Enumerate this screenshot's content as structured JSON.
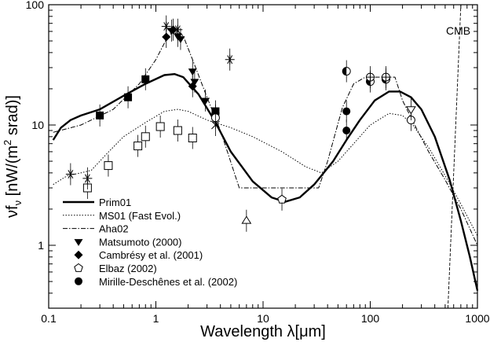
{
  "chart_data": {
    "type": "line",
    "xscale": "log",
    "yscale": "log",
    "xlim": [
      0.1,
      1000
    ],
    "ylim": [
      0.3,
      100
    ],
    "xlabel": "Wavelength λ[μm]",
    "ylabel_main": "νf",
    "ylabel_sub": "ν",
    "ylabel_units_pre": " [nW/(m",
    "ylabel_units_sup": "2",
    "ylabel_units_post": " srad)]",
    "x_ticks": [
      {
        "v": 0.1,
        "label": "0.1"
      },
      {
        "v": 1,
        "label": "1"
      },
      {
        "v": 10,
        "label": "10"
      },
      {
        "v": 100,
        "label": "100"
      },
      {
        "v": 1000,
        "label": "1000"
      }
    ],
    "y_ticks": [
      {
        "v": 1,
        "label": "1"
      },
      {
        "v": 10,
        "label": "10"
      },
      {
        "v": 100,
        "label": "100"
      }
    ],
    "annotation": "CMB",
    "legend_position": "bottom-left",
    "series": [
      {
        "name": "Prim01",
        "style": "solid-thick",
        "points": [
          [
            0.11,
            7.5
          ],
          [
            0.13,
            9.5
          ],
          [
            0.16,
            11
          ],
          [
            0.2,
            12
          ],
          [
            0.3,
            13.5
          ],
          [
            0.5,
            17.5
          ],
          [
            0.8,
            22
          ],
          [
            1.2,
            26
          ],
          [
            1.5,
            26.5
          ],
          [
            1.8,
            25
          ],
          [
            2.5,
            18
          ],
          [
            3.5,
            11
          ],
          [
            5,
            6
          ],
          [
            8,
            3.4
          ],
          [
            12,
            2.5
          ],
          [
            16,
            2.3
          ],
          [
            22,
            2.5
          ],
          [
            30,
            3.2
          ],
          [
            45,
            5
          ],
          [
            60,
            7.5
          ],
          [
            80,
            11
          ],
          [
            110,
            16
          ],
          [
            150,
            19
          ],
          [
            190,
            19
          ],
          [
            240,
            17
          ],
          [
            300,
            13.5
          ],
          [
            400,
            8
          ],
          [
            550,
            3.5
          ],
          [
            700,
            1.6
          ],
          [
            850,
            0.8
          ],
          [
            1000,
            0.42
          ]
        ]
      },
      {
        "name": "MS01 (Fast Evol.)",
        "style": "dotted",
        "points": [
          [
            0.11,
            3.2
          ],
          [
            0.15,
            3.8
          ],
          [
            0.2,
            4
          ],
          [
            0.25,
            4.2
          ],
          [
            0.35,
            5.8
          ],
          [
            0.5,
            8
          ],
          [
            0.8,
            10.5
          ],
          [
            1.2,
            13
          ],
          [
            1.6,
            13.5
          ],
          [
            2,
            13
          ],
          [
            3,
            11
          ],
          [
            5,
            9.5
          ],
          [
            8,
            8
          ],
          [
            15,
            6
          ],
          [
            25,
            4.5
          ],
          [
            35,
            4
          ],
          [
            50,
            5
          ],
          [
            70,
            7
          ],
          [
            100,
            10
          ],
          [
            150,
            12.5
          ],
          [
            200,
            12
          ],
          [
            250,
            10
          ],
          [
            350,
            6.5
          ],
          [
            500,
            3.8
          ],
          [
            700,
            2.2
          ],
          [
            1000,
            1.2
          ]
        ]
      },
      {
        "name": "Aha02",
        "style": "dashdot",
        "points": [
          [
            0.11,
            8.7
          ],
          [
            0.2,
            10
          ],
          [
            0.4,
            13.5
          ],
          [
            0.7,
            22
          ],
          [
            1,
            35
          ],
          [
            1.3,
            55
          ],
          [
            1.55,
            62
          ],
          [
            1.8,
            55
          ],
          [
            2.2,
            35
          ],
          [
            3,
            17
          ],
          [
            4,
            9
          ],
          [
            6,
            3
          ],
          [
            10,
            3
          ],
          [
            20,
            3
          ],
          [
            33,
            3
          ],
          [
            40,
            5
          ],
          [
            55,
            14
          ],
          [
            70,
            22
          ],
          [
            90,
            25
          ],
          [
            120,
            25
          ],
          [
            170,
            25
          ],
          [
            200,
            16
          ],
          [
            260,
            10
          ],
          [
            350,
            6
          ],
          [
            500,
            3.5
          ],
          [
            700,
            2
          ],
          [
            1000,
            1
          ]
        ]
      },
      {
        "name": "CMB",
        "style": "dashed-thin",
        "points": [
          [
            530,
            0.3
          ],
          [
            700,
            100
          ]
        ]
      }
    ],
    "data_sets": [
      {
        "name": "Matsumoto (2000)",
        "marker": "tri-down-filled",
        "points": [
          [
            1.4,
            61
          ],
          [
            1.6,
            55
          ],
          [
            1.7,
            52
          ],
          [
            2.2,
            28
          ],
          [
            2.3,
            23
          ],
          [
            2.9,
            16
          ],
          [
            3.6,
            12
          ]
        ]
      },
      {
        "name": "Cambrésy et al. (2001)",
        "marker": "diamond-filled",
        "points": [
          [
            1.25,
            54
          ],
          [
            1.45,
            62
          ],
          [
            2.2,
            21
          ]
        ]
      },
      {
        "name": "Elbaz (2002)",
        "marker": "pentagon-open",
        "points": [
          [
            15,
            2.4
          ]
        ]
      },
      {
        "name": "Mirille-Deschênes et al. (2002)",
        "marker": "circle-filled",
        "points": [
          [
            60,
            13
          ],
          [
            60,
            9
          ]
        ]
      },
      {
        "marker": "square-filled",
        "points": [
          [
            0.3,
            12
          ],
          [
            0.55,
            17
          ],
          [
            0.8,
            24
          ],
          [
            3.6,
            13
          ]
        ]
      },
      {
        "marker": "square-open",
        "points": [
          [
            0.23,
            3
          ],
          [
            0.36,
            4.6
          ],
          [
            0.68,
            6.7
          ],
          [
            0.8,
            8
          ],
          [
            1.1,
            9.7
          ],
          [
            1.6,
            9
          ],
          [
            2.2,
            7.8
          ]
        ]
      },
      {
        "marker": "asterisk",
        "points": [
          [
            0.16,
            3.9
          ],
          [
            0.23,
            3.6
          ],
          [
            1.25,
            66
          ],
          [
            1.6,
            62
          ],
          [
            4.9,
            35
          ]
        ]
      },
      {
        "marker": "tri-up-open",
        "points": [
          [
            7,
            1.6
          ]
        ]
      },
      {
        "marker": "circle-open",
        "points": [
          [
            3.6,
            11.5
          ],
          [
            240,
            11
          ]
        ]
      },
      {
        "marker": "circle-half",
        "points": [
          [
            60,
            28
          ],
          [
            100,
            23
          ],
          [
            140,
            24
          ]
        ]
      },
      {
        "marker": "circle-cross",
        "points": [
          [
            100,
            25
          ],
          [
            140,
            25
          ]
        ]
      },
      {
        "marker": "tri-down-open",
        "points": [
          [
            240,
            13.5
          ]
        ]
      },
      {
        "marker": "x-cross",
        "points": [
          [
            3.6,
            10
          ]
        ]
      }
    ]
  }
}
